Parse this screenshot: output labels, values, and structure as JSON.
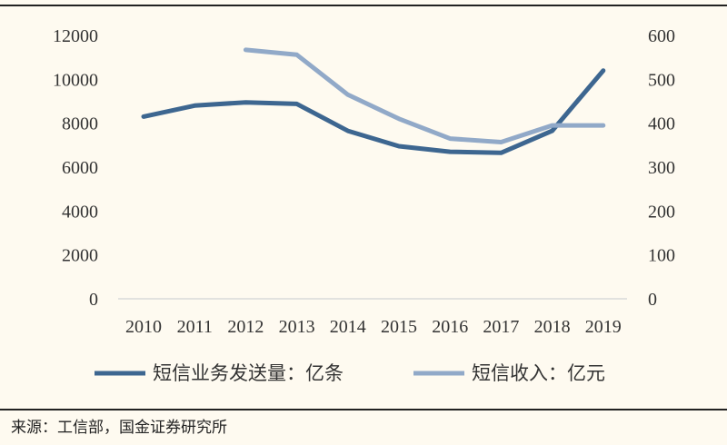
{
  "chart_data": {
    "type": "line",
    "categories": [
      "2010",
      "2011",
      "2012",
      "2013",
      "2014",
      "2015",
      "2016",
      "2017",
      "2018",
      "2019"
    ],
    "y_left": {
      "range": [
        0,
        12000
      ],
      "ticks": [
        0,
        2000,
        4000,
        6000,
        8000,
        10000,
        12000
      ]
    },
    "y_right": {
      "range": [
        0,
        600
      ],
      "ticks": [
        0,
        100,
        200,
        300,
        400,
        500,
        600
      ]
    },
    "grid": false,
    "legend_position": "bottom",
    "series": [
      {
        "name": "短信业务发送量：亿条",
        "axis": "left",
        "color": "#3d6690",
        "values": [
          8300,
          8800,
          8950,
          8880,
          7650,
          6950,
          6700,
          6650,
          7650,
          10400
        ]
      },
      {
        "name": "短信收入：亿元",
        "axis": "right",
        "color": "#91a9c8",
        "values": [
          null,
          null,
          567,
          556,
          465,
          410,
          365,
          357,
          395,
          395
        ]
      }
    ]
  },
  "source_note": "来源：工信部，国金证券研究所"
}
